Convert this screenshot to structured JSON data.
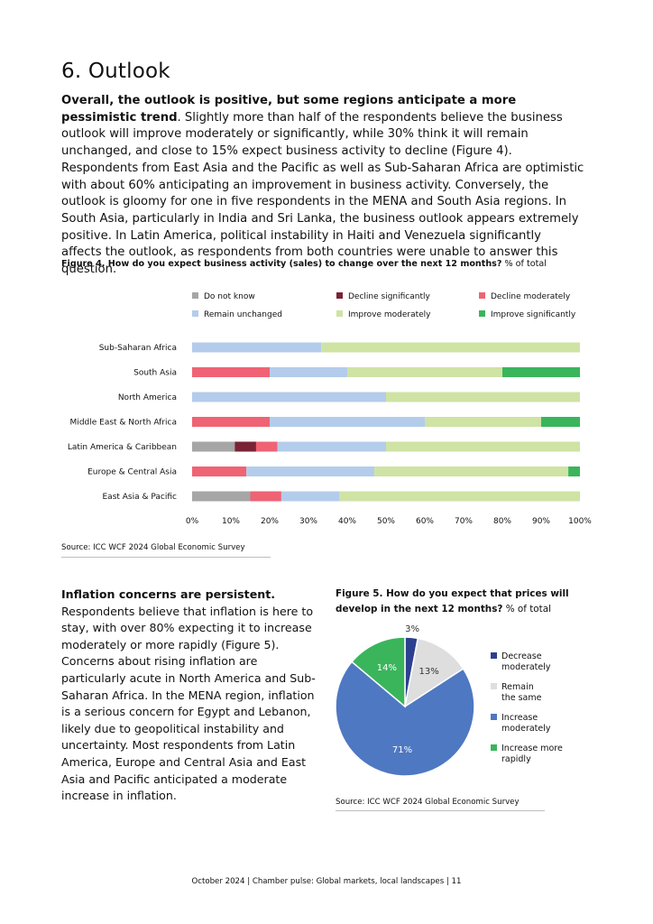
{
  "page": {
    "title": "6. Outlook",
    "intro_bold": "Overall, the outlook is positive, but some regions anticipate a more pessimistic trend",
    "intro_rest": ". Slightly more than half of the respondents believe the business outlook will improve moderately or significantly, while 30% think it will remain unchanged, and close to 15% expect business activity to decline (Figure 4). Respondents from East Asia and the Pacific as well as Sub-Saharan Africa are optimistic with about 60% anticipating an improvement in business activity. Conversely, the outlook is gloomy for one in five respondents in the MENA and South Asia regions. In South Asia, particularly in India and Sri Lanka, the business outlook appears extremely positive. In Latin America, political instability in Haiti and Venezuela significantly affects the outlook, as respondents from both countries were unable to answer this question.",
    "inflation_bold": "Inflation concerns are persistent.",
    "inflation_rest": " Respondents believe that inflation is here to stay, with over 80% expecting it to increase moderately or more rapidly (Figure 5). Concerns about rising inflation are particularly acute in North America and Sub-Saharan Africa. In the MENA region, inflation is a serious concern for Egypt and Lebanon, likely due to geopolitical instability and uncertainty. Most respondents from Latin America, Europe and Central Asia and East Asia and Pacific anticipated a moderate increase in inflation.",
    "footer": "October 2024 | Chamber pulse: Global markets, local landscapes | 11"
  },
  "figure4": {
    "title_bold": "Figure 4. How do you expect business activity (sales) to change over the next 12 months?",
    "title_rest": " % of total",
    "source": "Source: ICC WCF 2024 Global Economic Survey"
  },
  "figure5": {
    "title_bold": "Figure 5. How do you expect that prices will develop in the next 12 months?",
    "title_rest": " % of total",
    "source": "Source: ICC WCF 2024 Global Economic Survey"
  },
  "chart_data": [
    {
      "type": "bar",
      "orientation": "horizontal",
      "stacked": true,
      "categories": [
        "Sub-Saharan Africa",
        "South Asia",
        "North America",
        "Middle East & North Africa",
        "Latin America & Caribbean",
        "Europe & Central Asia",
        "East Asia & Pacific"
      ],
      "series": [
        {
          "name": "Do not know",
          "color": "#a6a6a6",
          "values": [
            0,
            0,
            0,
            0,
            11,
            0,
            15
          ]
        },
        {
          "name": "Decline significantly",
          "color": "#7a2335",
          "values": [
            0,
            0,
            0,
            0,
            5.5,
            0,
            0
          ]
        },
        {
          "name": "Decline moderately",
          "color": "#ef6374",
          "values": [
            0,
            20,
            0,
            20,
            5.5,
            14,
            8
          ]
        },
        {
          "name": "Remain unchanged",
          "color": "#b4cceb",
          "values": [
            33.3,
            20,
            50,
            40,
            28,
            33,
            15
          ]
        },
        {
          "name": "Improve moderately",
          "color": "#cfe3a4",
          "values": [
            66.7,
            40,
            50,
            30,
            50,
            50,
            62
          ]
        },
        {
          "name": "Improve significantly",
          "color": "#3ab55c",
          "values": [
            0,
            20,
            0,
            10,
            0,
            3,
            0
          ]
        }
      ],
      "x_ticks": [
        "0%",
        "10%",
        "20%",
        "30%",
        "40%",
        "50%",
        "60%",
        "70%",
        "80%",
        "90%",
        "100%"
      ],
      "xlim": [
        0,
        100
      ],
      "legend_position": "top"
    },
    {
      "type": "pie",
      "slices": [
        {
          "name": "Decrease moderately",
          "value": 3,
          "label": "3%",
          "color": "#2d3f8f"
        },
        {
          "name": "Remain the same",
          "value": 13,
          "label": "13%",
          "color": "#dedede"
        },
        {
          "name": "Increase moderately",
          "value": 71,
          "label": "71%",
          "color": "#4e78c2"
        },
        {
          "name": "Increase more rapidly",
          "value": 14,
          "label": "14%",
          "color": "#3ab55c"
        }
      ],
      "legend_labels": [
        [
          "Decrease",
          "moderately"
        ],
        [
          "Remain",
          "the same"
        ],
        [
          "Increase",
          "moderately"
        ],
        [
          "Increase more",
          "rapidly"
        ]
      ],
      "legend_position": "right"
    }
  ]
}
